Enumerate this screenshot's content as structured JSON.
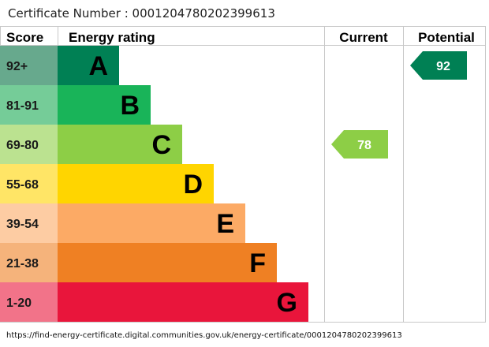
{
  "certificate": {
    "label": "Certificate Number : ",
    "number": "0001204780202399613"
  },
  "headers": {
    "score": "Score",
    "rating": "Energy rating",
    "current": "Current",
    "potential": "Potential"
  },
  "chart_data": {
    "type": "bar",
    "title": "",
    "categories": [
      "92+",
      "81-91",
      "69-80",
      "55-68",
      "39-54",
      "21-38",
      "1-20"
    ],
    "bands": [
      {
        "score": "92+",
        "letter": "A",
        "color": "#008054",
        "score_bg": "#67a98d"
      },
      {
        "score": "81-91",
        "letter": "B",
        "color": "#19b459",
        "score_bg": "#75cc98"
      },
      {
        "score": "69-80",
        "letter": "C",
        "color": "#8dce46",
        "score_bg": "#bbe290"
      },
      {
        "score": "55-68",
        "letter": "D",
        "color": "#ffd500",
        "score_bg": "#ffe566"
      },
      {
        "score": "39-54",
        "letter": "E",
        "color": "#fcaa65",
        "score_bg": "#fdcca3"
      },
      {
        "score": "21-38",
        "letter": "F",
        "color": "#ef8023",
        "score_bg": "#f5b37b"
      },
      {
        "score": "1-20",
        "letter": "G",
        "color": "#e9153b",
        "score_bg": "#f27389"
      }
    ],
    "current": {
      "value": 78,
      "band": "C",
      "color": "#8dce46"
    },
    "potential": {
      "value": 92,
      "band": "A",
      "color": "#008054"
    }
  },
  "footer": {
    "url": "https://find-energy-certificate.digital.communities.gov.uk/energy-certificate/0001204780202399613"
  }
}
